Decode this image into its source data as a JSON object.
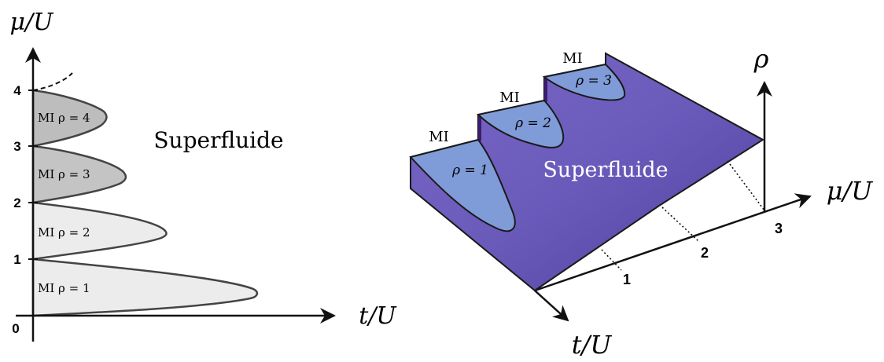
{
  "left_panel": {
    "y_axis_label": "μ/U",
    "x_axis_label": "t/U",
    "tick_labels": [
      "0",
      "1",
      "2",
      "3",
      "4"
    ],
    "region_label": "Superfluide",
    "lobes": [
      {
        "label": "MI ρ = 1",
        "density": 1,
        "fill": "#ececec"
      },
      {
        "label": "MI ρ = 2",
        "density": 2,
        "fill": "#ececec"
      },
      {
        "label": "MI ρ = 3",
        "density": 3,
        "fill": "#c4c4c4"
      },
      {
        "label": "MI ρ = 4",
        "density": 4,
        "fill": "#bdbdbd"
      }
    ]
  },
  "right_panel": {
    "z_axis_label": "ρ",
    "mu_axis_label": "μ/U",
    "t_axis_label": "t/U",
    "mu_ticks": [
      "1",
      "2",
      "3"
    ],
    "region_label": "Superfluide",
    "plateaus": [
      {
        "mi_label": "MI",
        "rho_label": "ρ = 1"
      },
      {
        "mi_label": "MI",
        "rho_label": "ρ = 2"
      },
      {
        "mi_label": "MI",
        "rho_label": "ρ = 3"
      }
    ],
    "colors": {
      "surface": "#6c5cb8",
      "plateau": "#7f9bd8",
      "edge": "#1a1a1a"
    }
  }
}
